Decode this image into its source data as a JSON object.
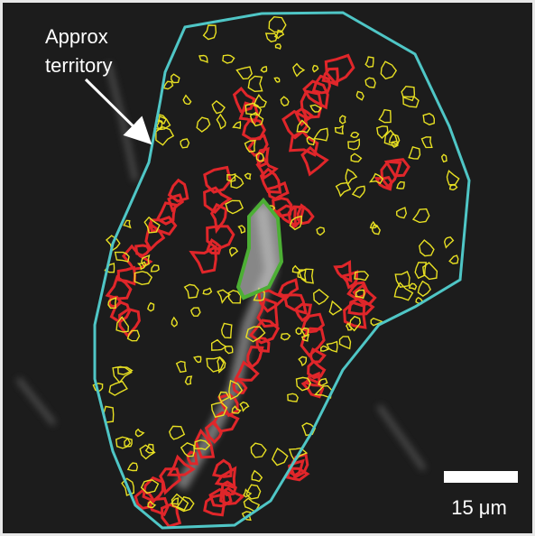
{
  "annotation": {
    "lines": [
      "Approx",
      "territory"
    ]
  },
  "scale_bar": {
    "label": "15 μm"
  }
}
